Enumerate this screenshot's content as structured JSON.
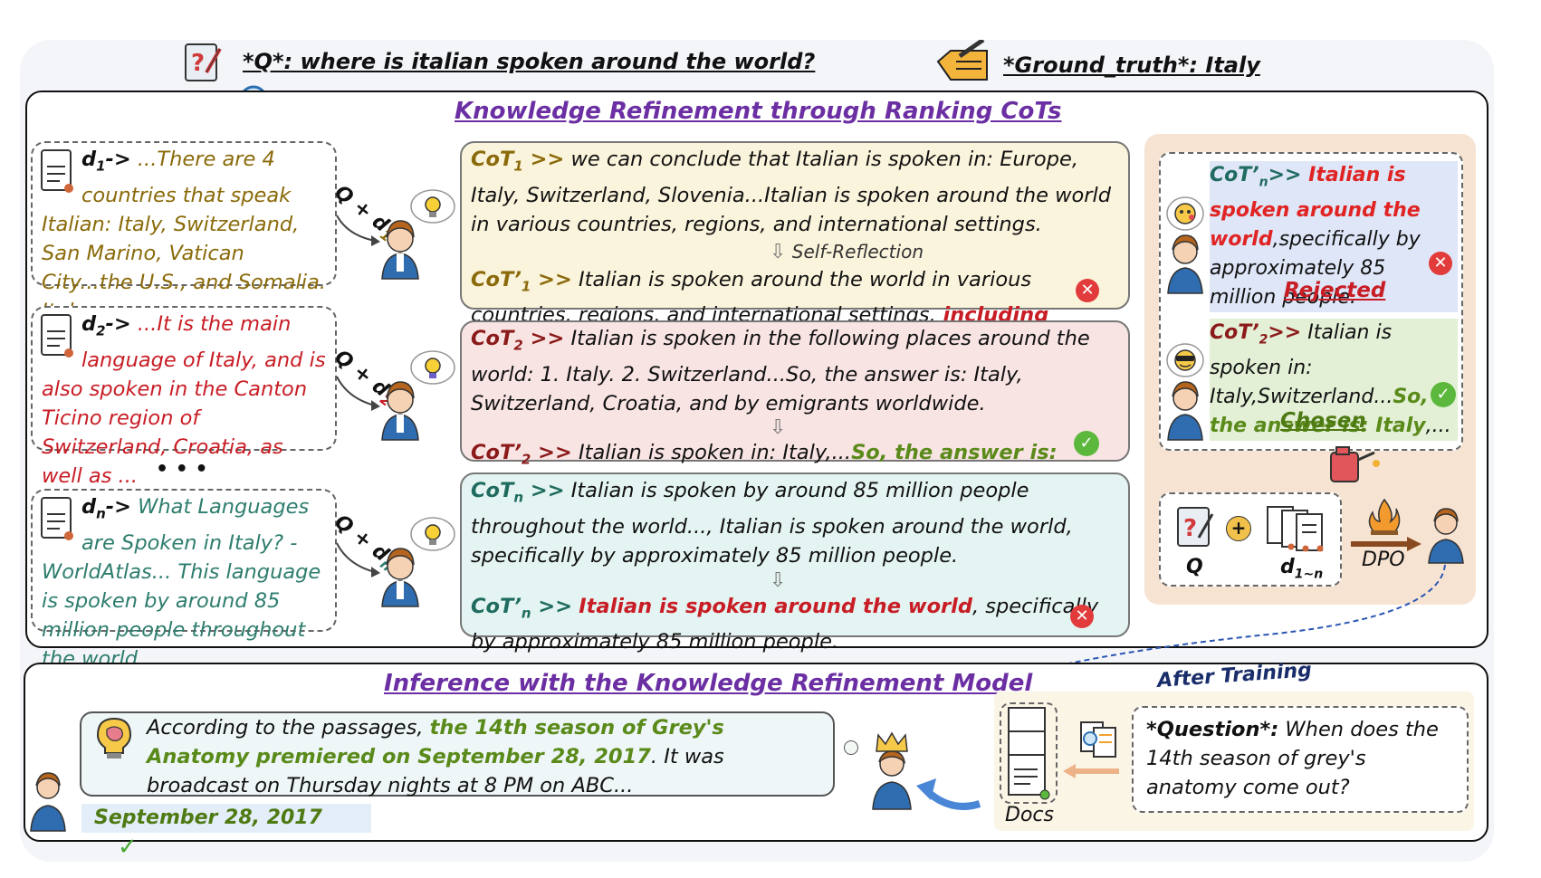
{
  "header": {
    "question": "*Q*: where is italian spoken around the world?",
    "ground_truth": "*Ground_truth*: Italy"
  },
  "top_section": {
    "title": "Knowledge Refinement through Ranking CoTs",
    "docs": [
      {
        "prefix_base": "d",
        "prefix_sub": "1",
        "arrow": "->",
        "text": " ...There are 4 countries that speak Italian: Italy, Switzerland, San Marino, Vatican City...the U.S., and Somalia. Italy..."
      },
      {
        "prefix_base": "d",
        "prefix_sub": "2",
        "arrow": "->",
        "text": " ...It is the main language of Italy, and is also spoken in the Canton Ticino region of Switzerland, Croatia, as well as ..."
      },
      {
        "prefix_base": "d",
        "prefix_sub": "n",
        "arrow": "->",
        "text": " What Languages are Spoken in Italy? - WorldAtlas... This language is spoken by around 85 million people throughout the world ..."
      }
    ],
    "ellipsis": "• • •",
    "query_labels": [
      {
        "base": "Q + d",
        "sub": "1"
      },
      {
        "base": "Q + d",
        "sub": "2"
      },
      {
        "base": "Q + d",
        "sub": "n"
      }
    ],
    "cots": [
      {
        "cot_label": "CoT",
        "cot_sub": "1",
        "cot_sep": " >>",
        "cot_text": " we can conclude that Italian is spoken in: Europe, Italy, Switzerland, Slovenia...Italian is spoken around the world in various countries, regions, and international settings.",
        "reflection_label": "Self-Reflection",
        "refined_label": "CoT’",
        "refined_sub": "1",
        "refined_sep": " >>",
        "refined_text": " Italian is spoken around the world in various countries, regions, and international settings,",
        "refined_highlight": " including Europe,...",
        "refined_tail": "",
        "verdict": "✕"
      },
      {
        "cot_label": "CoT",
        "cot_sub": "2",
        "cot_sep": " >>",
        "cot_text": " Italian is spoken in the following places around the world: 1. Italy. 2. Switzerland...So, the answer is: Italy, Switzerland, Croatia, and by emigrants worldwide.",
        "refined_label": "CoT’",
        "refined_sub": "2",
        "refined_sep": " >>",
        "refined_text": " Italian is spoken in: Italy,...",
        "refined_highlight": "So, the answer is: Italy",
        "refined_tail": ",...",
        "verdict": "✓"
      },
      {
        "cot_label": "CoT",
        "cot_sub": "n",
        "cot_sep": " >>",
        "cot_text": " Italian is spoken by around 85 million people throughout the world..., Italian is spoken around the world, specifically by approximately 85 million people.",
        "refined_label": "CoT’",
        "refined_sub": "n",
        "refined_sep": " >>",
        "refined_text": " ",
        "refined_highlight": "Italian is spoken around the world",
        "refined_tail": ", specifically by approximately 85 million people.",
        "verdict": "✕"
      }
    ],
    "right_panel": {
      "rejected": {
        "label": "CoT’",
        "sub": "n",
        "sep": ">>",
        "highlight": " Italian is spoken around the world",
        "text": ",specifically by approximately 85 million people.",
        "caption": "Rejected",
        "verdict": "✕"
      },
      "chosen": {
        "label": "CoT’",
        "sub": "2",
        "sep": ">>",
        "text": " Italian is spoken in: Italy,Switzerland...",
        "highlight": "So, the answer is: Italy",
        "tail": ",...",
        "caption": "Chosen",
        "verdict": "✓"
      },
      "q_label": "Q",
      "plus": "+",
      "d_label": "d",
      "d_sub": "1~n",
      "dpo_label": "DPO"
    }
  },
  "bottom_section": {
    "title": "Inference with the Knowledge Refinement Model",
    "after_training": "After Training",
    "answer_text_1": "According to the passages, ",
    "answer_highlight": "the 14th season of Grey's Anatomy premiered on September 28, 2017",
    "answer_text_2": ". It was broadcast on Thursday nights at 8 PM on ABC...",
    "final_answer": "September 28, 2017",
    "final_check": "✓",
    "docs_label": "Docs",
    "question_label": "*Question*:",
    "question_text": " When does the 14th season of grey's anatomy come out?"
  },
  "colors": {
    "title_purple": "#6b2fa3",
    "olive": "#8a6a0a",
    "red": "#c81d25",
    "teal": "#2e7d6e",
    "green": "#5a8a1a",
    "cot1_bg": "#fbf4dc",
    "cot2_bg": "#f9e4e4",
    "cotn_bg": "#e4f4f2",
    "right_panel_bg": "#f7e3d2"
  }
}
